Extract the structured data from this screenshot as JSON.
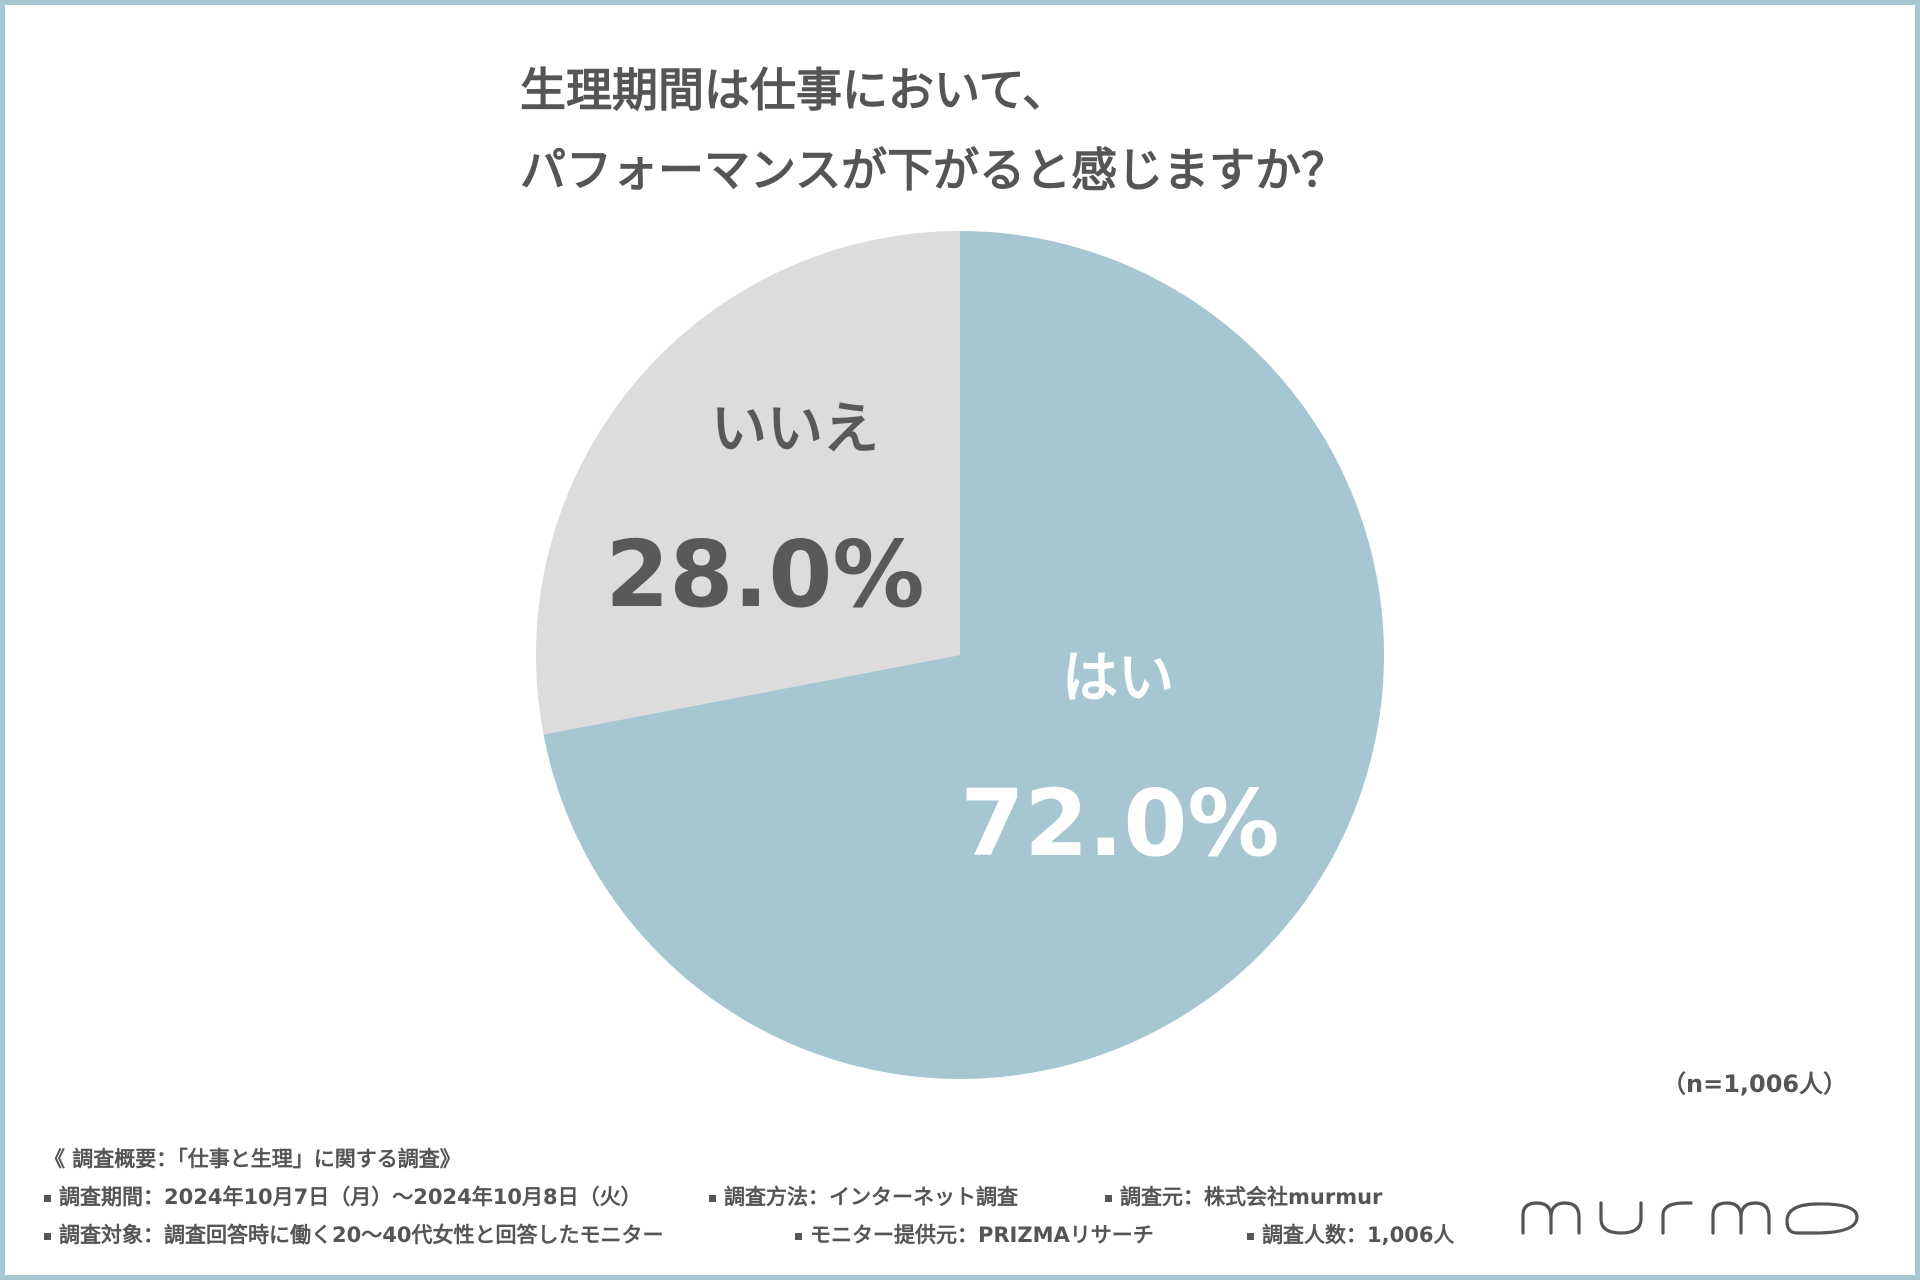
{
  "title": {
    "line1": "生理期間は仕事において、",
    "line2": "パフォーマンスが下がると感じますか？"
  },
  "chart_data": {
    "type": "pie",
    "title": "生理期間は仕事において、パフォーマンスが下がると感じますか？",
    "slices": [
      {
        "label": "はい",
        "value": 72.0,
        "display": "72.0%",
        "color": "#a6c7d2",
        "text_color": "#ffffff"
      },
      {
        "label": "いいえ",
        "value": 28.0,
        "display": "28.0%",
        "color": "#dcdcdc",
        "text_color": "#595959"
      }
    ]
  },
  "sample_size": "（n=1,006人）",
  "survey": {
    "heading": "《 調査概要：「仕事と生理」に関する調査》",
    "period": "調査期間：2024年10月7日（月）～2024年10月8日（火）",
    "method": "調査方法：インターネット調査",
    "source": "調査元：株式会社murmur",
    "target": "調査対象：調査回答時に働く20～40代女性と回答したモニター",
    "provider": "モニター提供元：PRIZMAリサーチ",
    "count": "調査人数：1,006人"
  },
  "logo": {
    "text": "murmo",
    "color": "#555555"
  }
}
